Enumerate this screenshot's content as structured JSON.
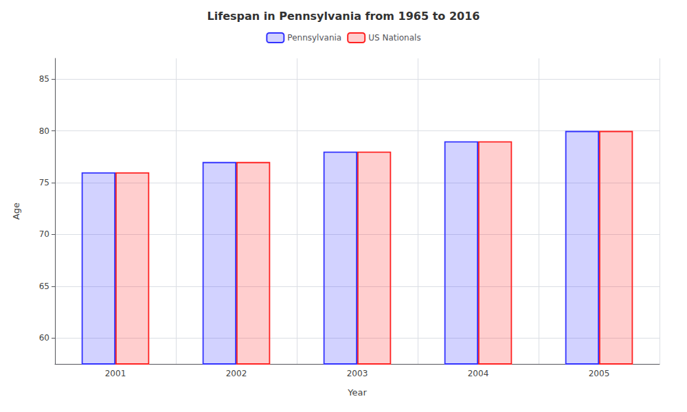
{
  "chart_data": {
    "type": "bar",
    "title": "Lifespan in Pennsylvania from 1965 to 2016",
    "x_label": "Year",
    "y_label": "Age",
    "categories": [
      "2001",
      "2002",
      "2003",
      "2004",
      "2005"
    ],
    "series": [
      {
        "name": "Pennsylvania",
        "color": "#3333ff",
        "values": [
          76.0,
          77.0,
          78.0,
          79.0,
          80.0
        ]
      },
      {
        "name": "US Nationals",
        "color": "#ff2222",
        "values": [
          76.0,
          77.0,
          78.0,
          79.0,
          80.0
        ]
      }
    ],
    "ylim": [
      57.5,
      87.0
    ],
    "yticks": [
      60,
      65,
      70,
      75,
      80,
      85
    ],
    "grid": true,
    "legend": "top"
  }
}
